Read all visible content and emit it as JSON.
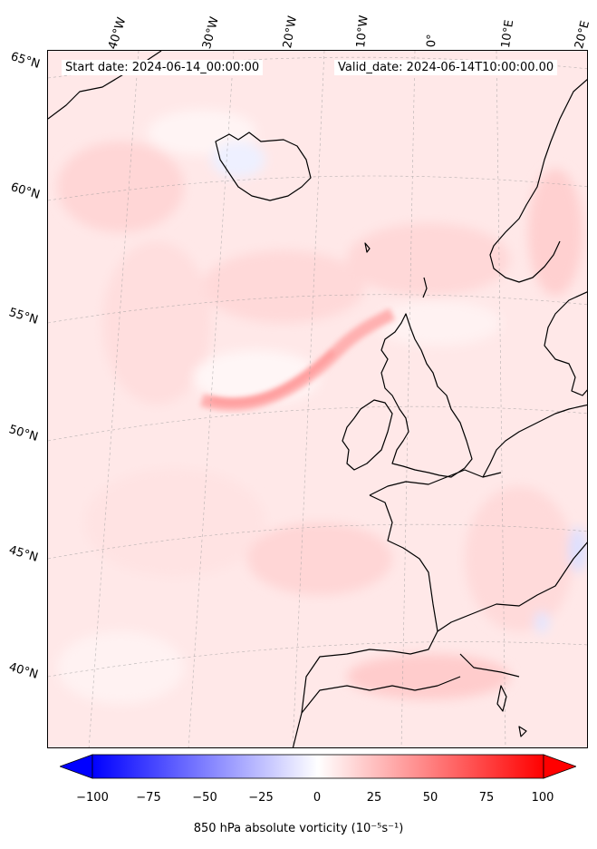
{
  "header": {
    "start_date": "Start date: 2024-06-14_00:00:00",
    "valid_date": "Valid_date: 2024-06-14T10:00:00.00"
  },
  "longitude_labels": [
    "40°W",
    "30°W",
    "20°W",
    "10°W",
    "0°",
    "10°E",
    "20°E"
  ],
  "latitude_labels": [
    "65°N",
    "60°N",
    "55°N",
    "50°N",
    "45°N",
    "40°N"
  ],
  "colorbar": {
    "min": -100,
    "max": 100,
    "ticks": [
      "−100",
      "−75",
      "−50",
      "−25",
      "0",
      "25",
      "50",
      "75",
      "100"
    ],
    "colormap": "bwr",
    "extend": "both",
    "label": "850 hPa absolute vorticity (10$^{-5}$s$^{-1}$)",
    "label_display": "850 hPa absolute vorticity (10⁻⁵s⁻¹)"
  },
  "colors": {
    "min_color": "#0000ff",
    "zero_color": "#ffffff",
    "max_color": "#ff0000",
    "background_field": "#ffe6e6",
    "coastline": "#000000"
  }
}
